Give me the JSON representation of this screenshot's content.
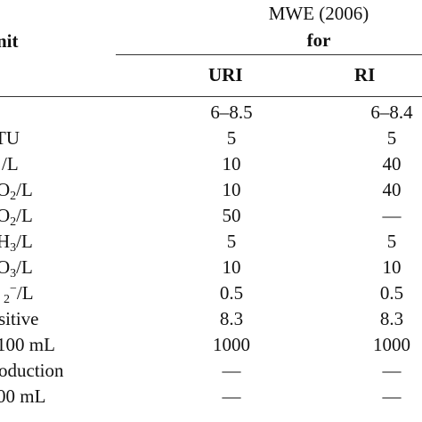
{
  "header": {
    "group_line1": "MWE (2006)",
    "group_line2": "for",
    "unit_label": "nit",
    "col_uri": "URI",
    "col_ri": "RI"
  },
  "rows": [
    {
      "unit": "",
      "uri": "6–8.5",
      "ri": "6–8.4"
    },
    {
      "unit": "TU",
      "uri": "5",
      "ri": "5"
    },
    {
      "unit": "/L",
      "uri": "10",
      "ri": "40"
    },
    {
      "unit_main": "O",
      "unit_sub": "2",
      "unit_tail": "/L",
      "uri": "10",
      "ri": "40"
    },
    {
      "unit_main": "O",
      "unit_sub": "2",
      "unit_tail": "/L",
      "uri": "50",
      "ri": "—"
    },
    {
      "unit_main": "H",
      "unit_sub": "3",
      "unit_tail": "/L",
      "uri": "5",
      "ri": "5"
    },
    {
      "unit_main": "O",
      "unit_sub": "3",
      "unit_tail": "/L",
      "uri": "10",
      "ri": "10"
    },
    {
      "unit_main": "",
      "unit_sub": "2",
      "unit_sup": "−",
      "unit_tail": "/L",
      "uri": "0.5",
      "ri": "0.5"
    },
    {
      "unit": "sitive",
      "uri": "8.3",
      "ri": "8.3"
    },
    {
      "unit": "100 mL",
      "uri": "1000",
      "ri": "1000"
    },
    {
      "unit": "oduction",
      "uri": "—",
      "ri": "—"
    },
    {
      "unit": "00 mL",
      "uri": "—",
      "ri": "—"
    }
  ]
}
